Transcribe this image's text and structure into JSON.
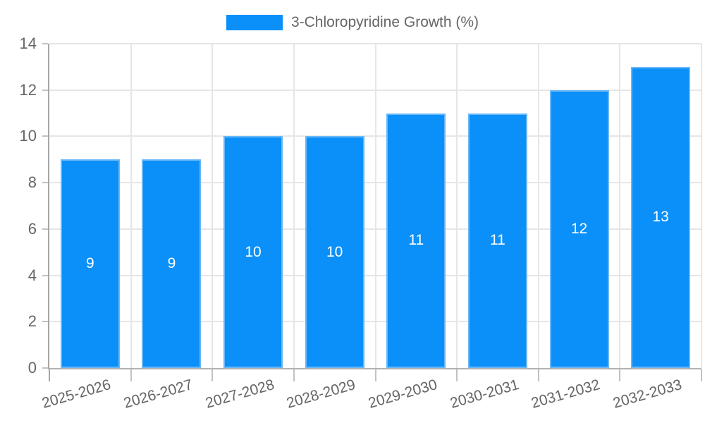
{
  "legend": {
    "position": "top",
    "items": [
      {
        "label": "3-Chloropyridine Growth (%)",
        "swatch_color": "#0a90f8"
      }
    ]
  },
  "chart_data": {
    "type": "bar",
    "title": "",
    "categories": [
      "2025-2026",
      "2026-2027",
      "2027-2028",
      "2028-2029",
      "2029-2030",
      "2030-2031",
      "2031-2032",
      "2032-2033"
    ],
    "series": [
      {
        "name": "3-Chloropyridine Growth (%)",
        "color": "#0a90f8",
        "values": [
          9,
          9,
          10,
          10,
          11,
          11,
          12,
          13
        ]
      }
    ],
    "value_labels": {
      "show": true,
      "position": "center",
      "color": "#ffffff"
    },
    "xlabel": "",
    "ylabel": "",
    "ylim": [
      0,
      14
    ],
    "yticks": [
      0,
      2,
      4,
      6,
      8,
      10,
      12,
      14
    ],
    "grid": true,
    "legend_position": "top",
    "x_tick_rotation_deg": -16
  },
  "style": {
    "bar_fill": "#0a90f8",
    "bar_border": "#6ab7f8",
    "grid_color": "#e6e6e6",
    "axis_line_color": "#a6a6a6",
    "tick_mark_color": "#c2c2c2",
    "tick_text_color": "#666666",
    "legend_text_color": "#666666",
    "value_label_color": "#ffffff",
    "background": "#ffffff"
  }
}
